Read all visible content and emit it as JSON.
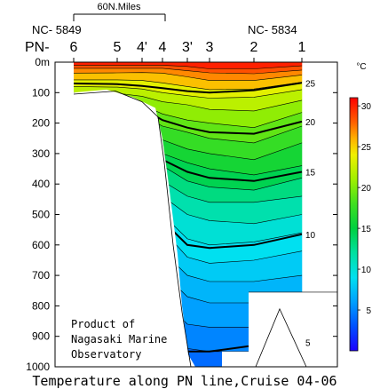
{
  "chart_data": {
    "type": "heatmap",
    "title": "Temperature along PN line,Cruise 04-06",
    "scale_bar_label": "60N.Miles",
    "left_station_id": "NC- 5849",
    "right_station_id": "NC- 5834",
    "line_label": "PN-",
    "stations": [
      "6",
      "5",
      "4'",
      "4",
      "3'",
      "3",
      "2",
      "1"
    ],
    "y_unit": "m",
    "y_ticks": [
      0,
      100,
      200,
      300,
      400,
      500,
      600,
      700,
      800,
      900,
      1000
    ],
    "y_tick_labels": [
      "0m",
      "100",
      "200",
      "300",
      "400",
      "500",
      "600",
      "700",
      "800",
      "900",
      "1000"
    ],
    "ylim": [
      0,
      1000
    ],
    "colorbar": {
      "unit": "°C",
      "range": [
        0,
        31
      ],
      "ticks": [
        5,
        10,
        15,
        20,
        25,
        30
      ],
      "stops": [
        {
          "t": 0,
          "color": "#1e00ff"
        },
        {
          "t": 3,
          "color": "#0050ff"
        },
        {
          "t": 6,
          "color": "#00a0ff"
        },
        {
          "t": 9,
          "color": "#00e0f0"
        },
        {
          "t": 12,
          "color": "#00e0a0"
        },
        {
          "t": 15,
          "color": "#00d040"
        },
        {
          "t": 18,
          "color": "#40e020"
        },
        {
          "t": 21,
          "color": "#a0f000"
        },
        {
          "t": 24,
          "color": "#f0f000"
        },
        {
          "t": 26,
          "color": "#ffb000"
        },
        {
          "t": 28,
          "color": "#ff6000"
        },
        {
          "t": 31,
          "color": "#ff0000"
        }
      ]
    },
    "bands": [
      {
        "t": 30,
        "top": [
          0,
          0,
          0,
          0,
          0,
          0,
          0,
          0
        ],
        "bot": [
          10,
          10,
          10,
          10,
          14,
          22,
          22,
          12
        ]
      },
      {
        "t": 28.5,
        "bot": [
          20,
          20,
          20,
          20,
          28,
          35,
          38,
          26
        ]
      },
      {
        "t": 27,
        "bot": [
          36,
          35,
          34,
          36,
          48,
          60,
          60,
          42
        ]
      },
      {
        "t": 25.5,
        "bot": [
          58,
          58,
          60,
          68,
          80,
          90,
          88,
          66
        ]
      },
      {
        "t": 23.5,
        "bot": [
          80,
          82,
          88,
          100,
          110,
          118,
          115,
          90
        ]
      },
      {
        "t": 22,
        "bot": [
          100,
          102,
          112,
          130,
          140,
          155,
          160,
          125
        ]
      },
      {
        "t": 20.5,
        "bot": [
          120,
          124,
          140,
          170,
          190,
          200,
          215,
          165
        ]
      },
      {
        "t": 19,
        "bot": [
          150,
          155,
          175,
          210,
          230,
          250,
          265,
          210
        ]
      },
      {
        "t": 17.5,
        "bot": [
          190,
          195,
          220,
          255,
          285,
          300,
          320,
          265
        ]
      },
      {
        "t": 16,
        "bot": [
          230,
          235,
          260,
          300,
          330,
          350,
          370,
          340
        ]
      },
      {
        "t": 14.5,
        "bot": [
          260,
          265,
          290,
          340,
          390,
          410,
          420,
          380
        ]
      },
      {
        "t": 13,
        "bot": [
          290,
          300,
          330,
          390,
          440,
          460,
          460,
          440
        ]
      },
      {
        "t": 11.5,
        "bot": [
          330,
          340,
          380,
          440,
          500,
          520,
          530,
          500
        ]
      },
      {
        "t": 10,
        "bot": [
          380,
          390,
          430,
          500,
          580,
          600,
          590,
          560
        ]
      },
      {
        "t": 9,
        "bot": [
          430,
          440,
          480,
          550,
          640,
          660,
          650,
          620
        ]
      },
      {
        "t": 8,
        "bot": [
          480,
          490,
          530,
          620,
          700,
          720,
          720,
          700
        ]
      },
      {
        "t": 7,
        "bot": [
          540,
          550,
          590,
          690,
          770,
          790,
          790,
          780
        ]
      },
      {
        "t": 6,
        "bot": [
          600,
          610,
          660,
          780,
          860,
          870,
          870,
          860
        ]
      },
      {
        "t": 5,
        "bot": [
          700,
          710,
          760,
          870,
          940,
          950,
          950,
          950
        ]
      },
      {
        "t": 4,
        "bot": [
          800,
          810,
          860,
          950,
          1000,
          1000,
          1000,
          1000
        ]
      },
      {
        "t": 3.5,
        "bot": [
          1000,
          1000,
          1000,
          1000,
          1000,
          1000,
          1000,
          1000
        ]
      }
    ],
    "bold_isotherms": [
      {
        "label": "25",
        "depths": [
          70,
          72,
          78,
          85,
          95,
          100,
          92,
          68
        ]
      },
      {
        "label": "20",
        "depths": [
          130,
          135,
          152,
          190,
          215,
          230,
          235,
          195
        ]
      },
      {
        "label": "15",
        "depths": [
          245,
          252,
          275,
          320,
          360,
          380,
          390,
          360
        ]
      },
      {
        "label": "10",
        "depths": [
          380,
          392,
          440,
          520,
          600,
          610,
          600,
          565
        ]
      },
      {
        "label": "5",
        "depths": [
          700,
          720,
          790,
          900,
          950,
          950,
          930,
          920
        ]
      }
    ],
    "annotation": [
      "Product of",
      "Nagasaki Marine",
      "Observatory"
    ]
  }
}
